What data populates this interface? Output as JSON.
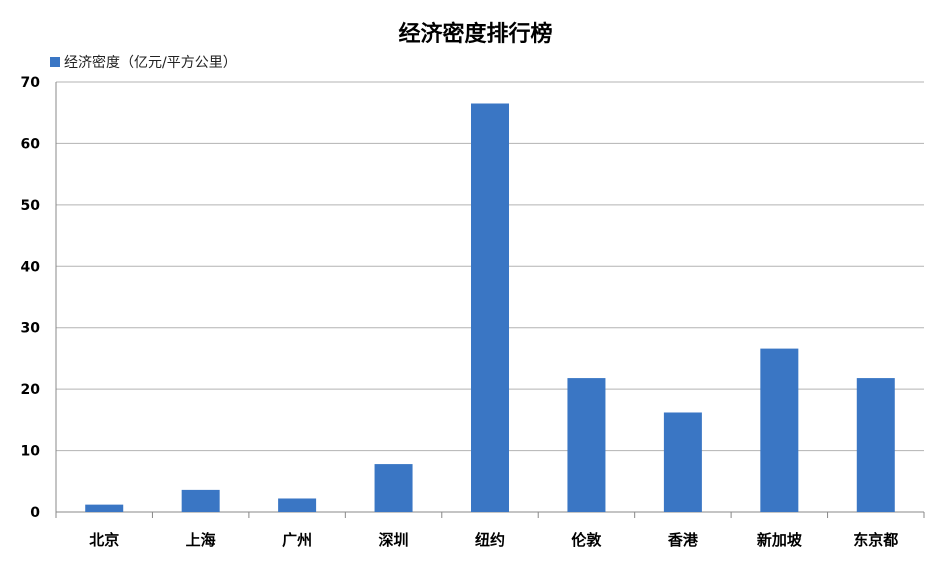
{
  "chart_data": {
    "type": "bar",
    "title": "经济密度排行榜",
    "categories": [
      "北京",
      "上海",
      "广州",
      "深圳",
      "纽约",
      "伦敦",
      "香港",
      "新加坡",
      "东京都"
    ],
    "series": [
      {
        "name": "经济密度（亿元/平方公里）",
        "values": [
          1.2,
          3.6,
          2.2,
          7.8,
          66.5,
          21.8,
          16.2,
          26.6,
          21.8
        ]
      }
    ],
    "ylim": [
      0,
      70
    ],
    "yticks": [
      0,
      10,
      20,
      30,
      40,
      50,
      60,
      70
    ],
    "grid": true,
    "legend": "top-left",
    "colors": {
      "bar": "#3a76c4",
      "grid": "#b3b3b3",
      "axis": "#888888"
    }
  }
}
